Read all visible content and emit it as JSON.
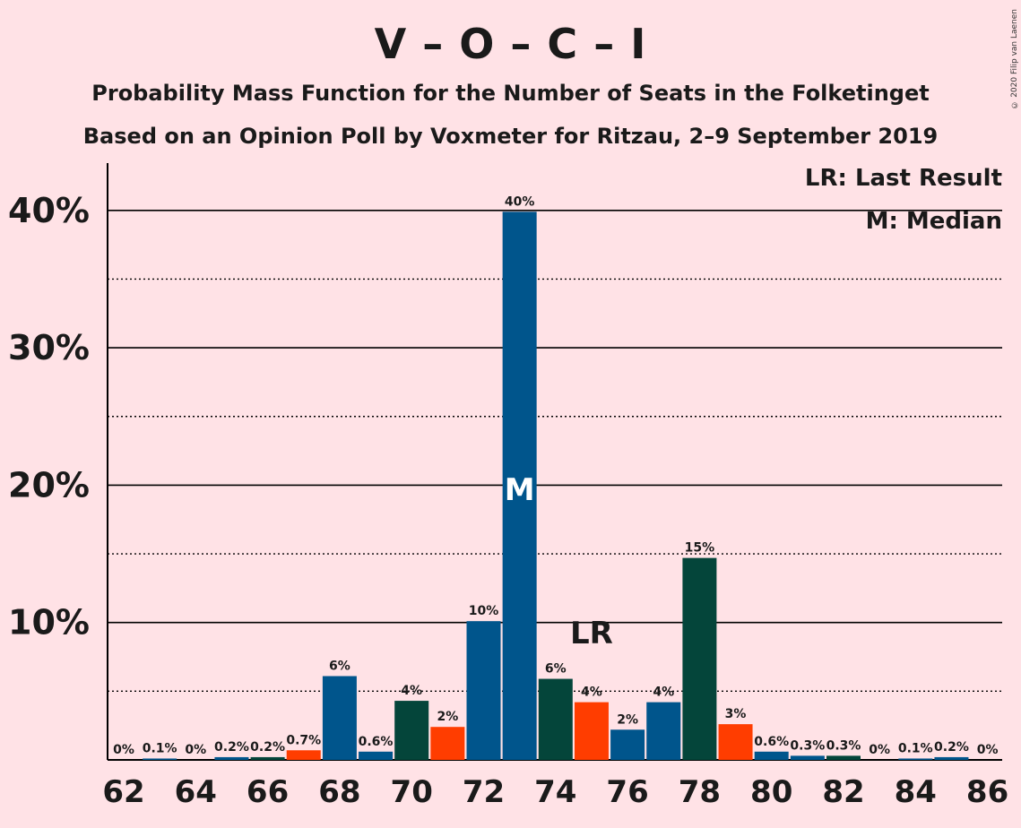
{
  "header": {
    "title": "V – O – C – I",
    "subtitle1": "Probability Mass Function for the Number of Seats in the Folketinget",
    "subtitle2": "Based on an Opinion Poll by Voxmeter for Ritzau, 2–9 September 2019",
    "copyright": "© 2020 Filip van Laenen"
  },
  "legend": {
    "lr": "LR: Last Result",
    "m": "M: Median"
  },
  "chart_data": {
    "type": "bar",
    "x": [
      62,
      63,
      64,
      65,
      66,
      67,
      68,
      69,
      70,
      71,
      72,
      73,
      74,
      75,
      76,
      77,
      78,
      79,
      80,
      81,
      82,
      83,
      84,
      85,
      86
    ],
    "values": [
      0,
      0.1,
      0,
      0.2,
      0.2,
      0.7,
      6.1,
      0.6,
      4.3,
      2.4,
      10.1,
      39.9,
      5.9,
      4.2,
      2.2,
      4.2,
      14.7,
      2.6,
      0.6,
      0.3,
      0.3,
      0,
      0.1,
      0.2,
      0
    ],
    "labels": [
      "0%",
      "0.1%",
      "0%",
      "0.2%",
      "0.2%",
      "0.7%",
      "6%",
      "0.6%",
      "4%",
      "2%",
      "10%",
      "40%",
      "6%",
      "4%",
      "2%",
      "4%",
      "15%",
      "3%",
      "0.6%",
      "0.3%",
      "0.3%",
      "0%",
      "0.1%",
      "0.2%",
      "0%"
    ],
    "colors": [
      "#00558C",
      "#00558C",
      "#04453A",
      "#00558C",
      "#04453A",
      "#FF3D00",
      "#00558C",
      "#00558C",
      "#04453A",
      "#FF3D00",
      "#00558C",
      "#00558C",
      "#04453A",
      "#FF3D00",
      "#00558C",
      "#00558C",
      "#04453A",
      "#FF3D00",
      "#00558C",
      "#00558C",
      "#04453A",
      "#FF3D00",
      "#00558C",
      "#00558C",
      "#04453A"
    ],
    "xticks": [
      62,
      64,
      66,
      68,
      70,
      72,
      74,
      76,
      78,
      80,
      82,
      84,
      86
    ],
    "yticks": [
      "10%",
      "20%",
      "30%",
      "40%"
    ],
    "ytick_values": [
      10,
      20,
      30,
      40
    ],
    "ylim": [
      0,
      44
    ],
    "median": 73,
    "median_label": "M",
    "last_result": 75,
    "last_result_label": "LR"
  }
}
